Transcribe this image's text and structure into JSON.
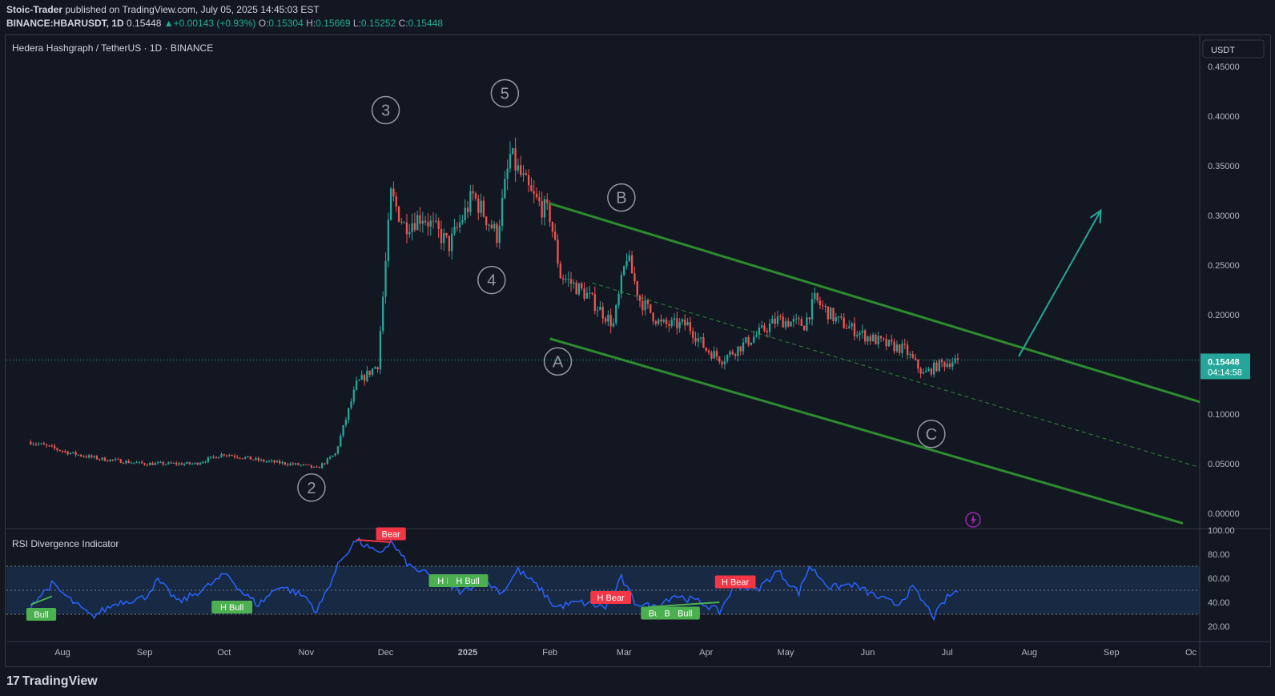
{
  "header": {
    "author": "Stoic-Trader",
    "published_text": "published on TradingView.com, July 05, 2025 14:45:03 EST",
    "symbol_line": "BINANCE:HBARUSDT, 1D",
    "last": "0.15448",
    "change_arrow": "▲",
    "change": "+0.00143 (+0.93%)",
    "o_label": "O:",
    "o_value": "0.15304",
    "h_label": "H:",
    "h_value": "0.15669",
    "l_label": "L:",
    "l_value": "0.15252",
    "c_label": "C:",
    "c_value": "0.15448"
  },
  "pane": {
    "legend": "Hedera Hashgraph / TetherUS · 1D · BINANCE",
    "currency": "USDT",
    "price_ticks": [
      "0.45000",
      "0.40000",
      "0.35000",
      "0.30000",
      "0.25000",
      "0.20000",
      "0.15000",
      "0.10000",
      "0.05000",
      "0.00000"
    ],
    "last_price": "0.15448",
    "countdown": "04:14:58",
    "wave_labels": [
      "2",
      "3",
      "4",
      "5",
      "A",
      "B",
      "C"
    ]
  },
  "rsi": {
    "title": "RSI Divergence Indicator",
    "ticks": [
      "100.00",
      "80.00",
      "60.00",
      "40.00",
      "20.00"
    ],
    "tags": [
      {
        "text": "Bull",
        "type": "bull"
      },
      {
        "text": "H Bull",
        "type": "bull"
      },
      {
        "text": "Bear",
        "type": "bear"
      },
      {
        "text": "H Bull",
        "type": "bull"
      },
      {
        "text": "H Bull",
        "type": "bull"
      },
      {
        "text": "H Bear",
        "type": "bear"
      },
      {
        "text": "Bull",
        "type": "bull"
      },
      {
        "text": "Bull",
        "type": "bull"
      },
      {
        "text": "Bull",
        "type": "bull"
      },
      {
        "text": "H Bear",
        "type": "bear"
      }
    ]
  },
  "time_axis": [
    "Aug",
    "Sep",
    "Oct",
    "Nov",
    "Dec",
    "2025",
    "Feb",
    "Mar",
    "Apr",
    "May",
    "Jun",
    "Jul",
    "Aug",
    "Sep",
    "Oc"
  ],
  "footer": {
    "logo_mark": "17",
    "logo_text": "TradingView"
  },
  "colors": {
    "background": "#131722",
    "up": "#26a69a",
    "down": "#ef5350",
    "channel": "#2e8b2e",
    "rsi_line": "#2962ff",
    "rsi_band": "#1e3a5f",
    "bull_tag": "#4caf50",
    "bear_tag": "#f23645",
    "last_price_bg": "#26a69a"
  },
  "chart_data": {
    "type": "candlestick",
    "symbol": "BINANCE:HBARUSDT",
    "interval": "1D",
    "ylim": [
      0,
      0.46
    ],
    "last": 0.15448,
    "path": [
      [
        "2024-07-20",
        0.072
      ],
      [
        "2024-08-05",
        0.06
      ],
      [
        "2024-08-15",
        0.055
      ],
      [
        "2024-09-01",
        0.05
      ],
      [
        "2024-09-20",
        0.05
      ],
      [
        "2024-10-01",
        0.06
      ],
      [
        "2024-10-15",
        0.053
      ],
      [
        "2024-11-01",
        0.048
      ],
      [
        "2024-11-05",
        0.045
      ],
      [
        "2024-11-12",
        0.06
      ],
      [
        "2024-11-20",
        0.13
      ],
      [
        "2024-11-28",
        0.15
      ],
      [
        "2024-12-03",
        0.32
      ],
      [
        "2024-12-08",
        0.29
      ],
      [
        "2024-12-15",
        0.3
      ],
      [
        "2024-12-25",
        0.27
      ],
      [
        "2025-01-03",
        0.32
      ],
      [
        "2025-01-12",
        0.28
      ],
      [
        "2025-01-17",
        0.36
      ],
      [
        "2025-01-25",
        0.32
      ],
      [
        "2025-02-01",
        0.3
      ],
      [
        "2025-02-05",
        0.24
      ],
      [
        "2025-02-15",
        0.22
      ],
      [
        "2025-02-25",
        0.19
      ],
      [
        "2025-03-02",
        0.26
      ],
      [
        "2025-03-07",
        0.215
      ],
      [
        "2025-03-15",
        0.19
      ],
      [
        "2025-03-25",
        0.19
      ],
      [
        "2025-04-01",
        0.165
      ],
      [
        "2025-04-07",
        0.155
      ],
      [
        "2025-04-15",
        0.17
      ],
      [
        "2025-04-28",
        0.195
      ],
      [
        "2025-05-08",
        0.19
      ],
      [
        "2025-05-12",
        0.215
      ],
      [
        "2025-05-20",
        0.195
      ],
      [
        "2025-05-30",
        0.18
      ],
      [
        "2025-06-08",
        0.17
      ],
      [
        "2025-06-15",
        0.165
      ],
      [
        "2025-06-22",
        0.14
      ],
      [
        "2025-06-28",
        0.15
      ],
      [
        "2025-07-05",
        0.15448
      ]
    ],
    "rsi": [
      [
        "2024-07-20",
        38
      ],
      [
        "2024-07-28",
        55
      ],
      [
        "2024-08-04",
        42
      ],
      [
        "2024-08-12",
        28
      ],
      [
        "2024-08-22",
        40
      ],
      [
        "2024-09-01",
        44
      ],
      [
        "2024-09-06",
        58
      ],
      [
        "2024-09-14",
        40
      ],
      [
        "2024-09-24",
        52
      ],
      [
        "2024-10-02",
        64
      ],
      [
        "2024-10-08",
        48
      ],
      [
        "2024-10-14",
        38
      ],
      [
        "2024-10-22",
        54
      ],
      [
        "2024-11-01",
        44
      ],
      [
        "2024-11-05",
        32
      ],
      [
        "2024-11-14",
        75
      ],
      [
        "2024-11-20",
        92
      ],
      [
        "2024-11-28",
        80
      ],
      [
        "2024-12-03",
        90
      ],
      [
        "2024-12-10",
        70
      ],
      [
        "2024-12-20",
        60
      ],
      [
        "2024-12-30",
        48
      ],
      [
        "2025-01-06",
        60
      ],
      [
        "2025-01-14",
        48
      ],
      [
        "2025-01-20",
        67
      ],
      [
        "2025-01-28",
        52
      ],
      [
        "2025-02-03",
        36
      ],
      [
        "2025-02-12",
        40
      ],
      [
        "2025-02-22",
        36
      ],
      [
        "2025-02-28",
        60
      ],
      [
        "2025-03-05",
        40
      ],
      [
        "2025-03-12",
        36
      ],
      [
        "2025-03-20",
        46
      ],
      [
        "2025-03-30",
        40
      ],
      [
        "2025-04-06",
        32
      ],
      [
        "2025-04-12",
        55
      ],
      [
        "2025-04-20",
        50
      ],
      [
        "2025-04-28",
        66
      ],
      [
        "2025-05-06",
        48
      ],
      [
        "2025-05-10",
        70
      ],
      [
        "2025-05-18",
        52
      ],
      [
        "2025-05-26",
        55
      ],
      [
        "2025-06-05",
        44
      ],
      [
        "2025-06-12",
        38
      ],
      [
        "2025-06-18",
        52
      ],
      [
        "2025-06-26",
        28
      ],
      [
        "2025-07-01",
        44
      ],
      [
        "2025-07-05",
        50
      ]
    ],
    "divergence_lines": [
      {
        "from": [
          "2024-11-20",
          92
        ],
        "to": [
          "2024-12-03",
          90
        ],
        "type": "bear"
      },
      {
        "from": [
          "2024-07-20",
          38
        ],
        "to": [
          "2024-07-28",
          45
        ],
        "type": "bull"
      },
      {
        "from": [
          "2025-03-10",
          36
        ],
        "to": [
          "2025-04-06",
          40
        ],
        "type": "bull"
      },
      {
        "from": [
          "2025-04-06",
          52
        ],
        "to": [
          "2025-04-14",
          55
        ],
        "type": "bear"
      }
    ],
    "channel": {
      "upper": [
        [
          "2025-02-01",
          0.312
        ],
        [
          "2025-10-12",
          0.106
        ]
      ],
      "lower": [
        [
          "2025-02-01",
          0.176
        ],
        [
          "2025-09-28",
          -0.01
        ]
      ],
      "mid": [
        [
          "2025-02-17",
          0.232
        ],
        [
          "2025-10-12",
          0.04
        ]
      ]
    },
    "projection_arrow": {
      "from": [
        "2025-07-28",
        0.158
      ],
      "to": [
        "2025-08-28",
        0.305
      ]
    },
    "rsi_bands": {
      "upper": 70,
      "middle": 50,
      "lower": 30
    }
  }
}
